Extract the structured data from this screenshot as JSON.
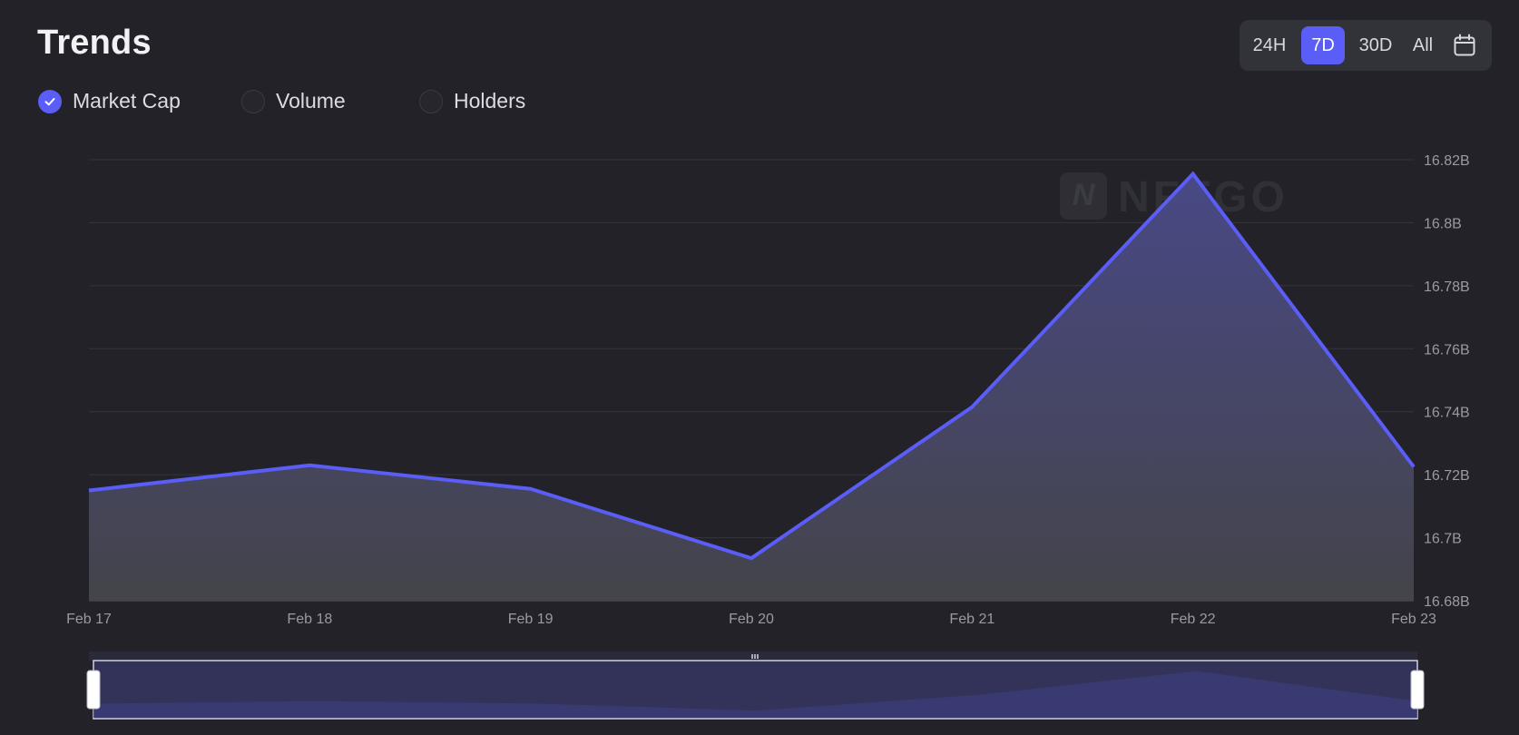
{
  "header": {
    "title": "Trends"
  },
  "metrics": [
    {
      "label": "Market Cap",
      "checked": true
    },
    {
      "label": "Volume",
      "checked": false
    },
    {
      "label": "Holders",
      "checked": false
    }
  ],
  "ranges": [
    {
      "label": "24H",
      "active": false
    },
    {
      "label": "7D",
      "active": true
    },
    {
      "label": "30D",
      "active": false
    },
    {
      "label": "All",
      "active": false
    }
  ],
  "watermark": "NFTGO",
  "colors": {
    "accent": "#5a5df6",
    "background": "#222228",
    "grid": "#34343b"
  },
  "chart_data": {
    "type": "area",
    "x": [
      "Feb 17",
      "Feb 18",
      "Feb 19",
      "Feb 20",
      "Feb 21",
      "Feb 22",
      "Feb 23"
    ],
    "series": [
      {
        "name": "Market Cap",
        "values": [
          16.715,
          16.723,
          16.7155,
          16.6935,
          16.7415,
          16.8155,
          16.7225
        ]
      }
    ],
    "y_ticks": [
      "16.68B",
      "16.7B",
      "16.72B",
      "16.74B",
      "16.76B",
      "16.78B",
      "16.8B",
      "16.82B"
    ],
    "ylim": [
      16.68,
      16.82
    ],
    "grid": true,
    "y_axis_position": "right",
    "brush": true
  }
}
